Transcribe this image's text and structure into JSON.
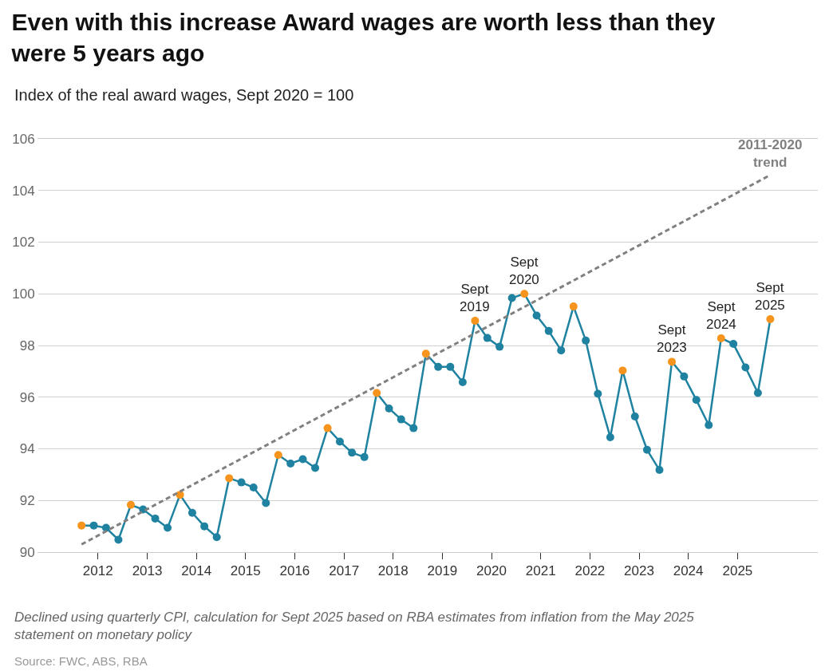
{
  "chart_data": {
    "type": "line",
    "title": "Even with this increase Award wages are worth less than they were 5 years ago",
    "subtitle": "Index of the real award wages, Sept 2020 = 100",
    "x": [
      "2011-09",
      "2011-12",
      "2012-03",
      "2012-06",
      "2012-09",
      "2012-12",
      "2013-03",
      "2013-06",
      "2013-09",
      "2013-12",
      "2014-03",
      "2014-06",
      "2014-09",
      "2014-12",
      "2015-03",
      "2015-06",
      "2015-09",
      "2015-12",
      "2016-03",
      "2016-06",
      "2016-09",
      "2016-12",
      "2017-03",
      "2017-06",
      "2017-09",
      "2017-12",
      "2018-03",
      "2018-06",
      "2018-09",
      "2018-12",
      "2019-03",
      "2019-06",
      "2019-09",
      "2019-12",
      "2020-03",
      "2020-06",
      "2020-09",
      "2020-12",
      "2021-03",
      "2021-06",
      "2021-09",
      "2021-12",
      "2022-03",
      "2022-06",
      "2022-09",
      "2022-12",
      "2023-03",
      "2023-06",
      "2023-09",
      "2023-12",
      "2024-03",
      "2024-06",
      "2024-09",
      "2024-12",
      "2025-03",
      "2025-06",
      "2025-09"
    ],
    "series": [
      {
        "color": "#1f82a0",
        "values": [
          91.03,
          91.03,
          90.94,
          90.48,
          91.83,
          91.65,
          91.3,
          90.94,
          92.22,
          91.52,
          91.0,
          90.58,
          92.86,
          92.7,
          92.5,
          91.9,
          93.76,
          93.43,
          93.6,
          93.26,
          94.8,
          94.28,
          93.85,
          93.68,
          96.16,
          95.56,
          95.14,
          94.8,
          97.68,
          97.17,
          97.17,
          96.58,
          98.96,
          98.29,
          97.95,
          99.84,
          100.0,
          99.16,
          98.56,
          97.81,
          99.51,
          98.19,
          96.13,
          94.45,
          97.03,
          95.25,
          93.96,
          93.18,
          97.37,
          96.8,
          95.89,
          94.92,
          98.28,
          98.06,
          97.15,
          96.16,
          99.02
        ],
        "colors": [
          "#f7941d",
          "#1f82a0",
          "#1f82a0",
          "#1f82a0",
          "#f7941d",
          "#1f82a0",
          "#1f82a0",
          "#1f82a0",
          "#f7941d",
          "#1f82a0",
          "#1f82a0",
          "#1f82a0",
          "#f7941d",
          "#1f82a0",
          "#1f82a0",
          "#1f82a0",
          "#f7941d",
          "#1f82a0",
          "#1f82a0",
          "#1f82a0",
          "#f7941d",
          "#1f82a0",
          "#1f82a0",
          "#1f82a0",
          "#f7941d",
          "#1f82a0",
          "#1f82a0",
          "#1f82a0",
          "#f7941d",
          "#1f82a0",
          "#1f82a0",
          "#1f82a0",
          "#f7941d",
          "#1f82a0",
          "#1f82a0",
          "#1f82a0",
          "#f7941d",
          "#1f82a0",
          "#1f82a0",
          "#1f82a0",
          "#f7941d",
          "#1f82a0",
          "#1f82a0",
          "#1f82a0",
          "#f7941d",
          "#1f82a0",
          "#1f82a0",
          "#1f82a0",
          "#f7941d",
          "#1f82a0",
          "#1f82a0",
          "#1f82a0",
          "#f7941d",
          "#1f82a0",
          "#1f82a0",
          "#1f82a0",
          "#f7941d"
        ]
      },
      {
        "name": "2011-2020\ntrend",
        "type": "line",
        "color": "#808080",
        "line_style": "dashed",
        "marker": "none",
        "x": [
          "2011-09",
          "2025-09"
        ],
        "values": [
          90.3,
          104.6
        ]
      }
    ],
    "annotations": [
      {
        "text": "Sept\n2019",
        "x": "2019-09",
        "y": 98.96
      },
      {
        "text": "Sept\n2020",
        "x": "2020-09",
        "y": 100.0
      },
      {
        "text": "Sept\n2023",
        "x": "2023-09",
        "y": 97.37
      },
      {
        "text": "Sept\n2024",
        "x": "2024-09",
        "y": 98.28
      },
      {
        "text": "Sept\n2025",
        "x": "2025-09",
        "y": 99.02
      },
      "Declined using quarterly CPI, calculation for Sept 2025 based on RBA estimates from inflation from the May 2025 statement on monetary policy",
      "Source: FWC, ABS, RBA"
    ],
    "xlim": [
      "2010-10-15",
      "2026-08-20"
    ],
    "xticks": [
      {
        "value": "2012-01",
        "label": "2012"
      },
      {
        "value": "2013-01",
        "label": "2013"
      },
      {
        "value": "2014-01",
        "label": "2014"
      },
      {
        "value": "2015-01",
        "label": "2015"
      },
      {
        "value": "2016-01",
        "label": "2016"
      },
      {
        "value": "2017-01",
        "label": "2017"
      },
      {
        "value": "2018-01",
        "label": "2018"
      },
      {
        "value": "2019-01",
        "label": "2019"
      },
      {
        "value": "2020-01",
        "label": "2020"
      },
      {
        "value": "2021-01",
        "label": "2021"
      },
      {
        "value": "2022-01",
        "label": "2022"
      },
      {
        "value": "2023-01",
        "label": "2023"
      },
      {
        "value": "2024-01",
        "label": "2024"
      },
      {
        "value": "2025-01",
        "label": "2025"
      }
    ],
    "ylim": [
      90,
      106
    ],
    "yticks": [
      90,
      92,
      94,
      96,
      98,
      100,
      102,
      104,
      106
    ],
    "grid": "y",
    "legend": false,
    "marker": "circle",
    "line_style": "solid"
  }
}
